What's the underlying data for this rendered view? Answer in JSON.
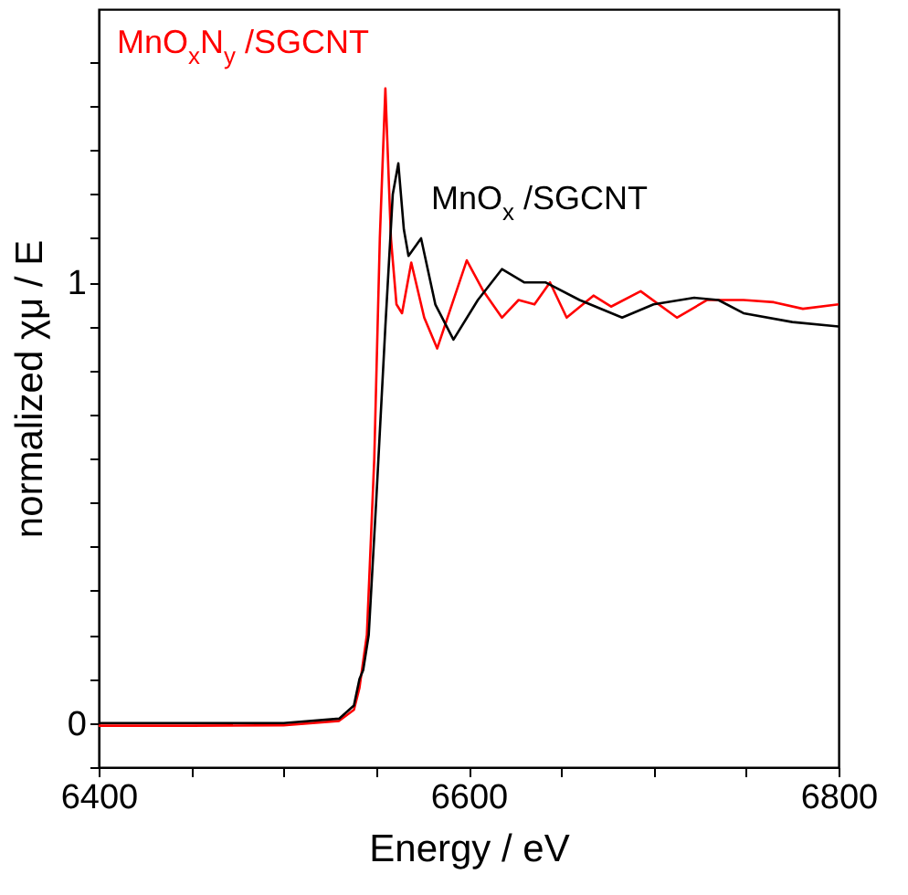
{
  "chart_data": {
    "type": "line",
    "xlabel": "Energy / eV",
    "ylabel": "normalized χμ / E",
    "xlim": [
      6400,
      6800
    ],
    "ylim": [
      -0.1,
      1.62
    ],
    "xticks": [
      6400,
      {
        "value": 6450,
        "label": null
      },
      {
        "value": 6500,
        "label": null
      },
      {
        "value": 6550,
        "label": null
      },
      6600,
      {
        "value": 6650,
        "label": null
      },
      {
        "value": 6700,
        "label": null
      },
      {
        "value": 6750,
        "label": null
      },
      6800
    ],
    "yticks": [
      {
        "value": -0.1,
        "label": null
      },
      0,
      {
        "value": 0.1,
        "label": null
      },
      {
        "value": 0.2,
        "label": null
      },
      {
        "value": 0.3,
        "label": null
      },
      {
        "value": 0.4,
        "label": null
      },
      {
        "value": 0.5,
        "label": null
      },
      {
        "value": 0.6,
        "label": null
      },
      {
        "value": 0.7,
        "label": null
      },
      {
        "value": 0.8,
        "label": null
      },
      {
        "value": 0.9,
        "label": null
      },
      1,
      {
        "value": 1.1,
        "label": null
      },
      {
        "value": 1.2,
        "label": null
      },
      {
        "value": 1.3,
        "label": null
      },
      {
        "value": 1.4,
        "label": null
      },
      {
        "value": 1.5,
        "label": null
      }
    ],
    "grid": false,
    "marker": "none",
    "line_style": "solid",
    "series": [
      {
        "name": "MnO$_{x}$N$_{y}$ /SGCNT",
        "color": "#ff0000",
        "x": [
          6400,
          6450,
          6500,
          6530,
          6538,
          6541,
          6545,
          6549,
          6552,
          6555,
          6558,
          6561,
          6564,
          6569,
          6576,
          6583,
          6591,
          6599,
          6608,
          6618,
          6627,
          6635.6,
          6644,
          6653,
          6667.5,
          6677,
          6693,
          6712.6,
          6729,
          6748.6,
          6765,
          6780.7,
          6800
        ],
        "values": [
          -0.006,
          -0.006,
          -0.005,
          0.005,
          0.03,
          0.08,
          0.2,
          0.6,
          1.1,
          1.44,
          1.1,
          0.95,
          0.93,
          1.045,
          0.92,
          0.85,
          0.95,
          1.05,
          0.98,
          0.92,
          0.96,
          0.95,
          1.0,
          0.92,
          0.97,
          0.945,
          0.98,
          0.92,
          0.96,
          0.96,
          0.955,
          0.94,
          0.95
        ]
      },
      {
        "name": "MnO$_{x}$ /SGCNT",
        "color": "#000000",
        "x": [
          6400,
          6450,
          6500,
          6530,
          6538,
          6541,
          6543,
          6546,
          6550,
          6555,
          6559,
          6562,
          6565,
          6567.5,
          6574.3,
          6582,
          6591.8,
          6605,
          6618,
          6630,
          6641.5,
          6660,
          6683,
          6700,
          6722,
          6735,
          6748.6,
          6775,
          6800
        ],
        "values": [
          0,
          0,
          0,
          0.01,
          0.04,
          0.1,
          0.12,
          0.2,
          0.5,
          0.9,
          1.2,
          1.27,
          1.12,
          1.06,
          1.1,
          0.95,
          0.87,
          0.96,
          1.03,
          1.0,
          1.0,
          0.96,
          0.92,
          0.95,
          0.965,
          0.96,
          0.93,
          0.91,
          0.9
        ]
      }
    ]
  }
}
